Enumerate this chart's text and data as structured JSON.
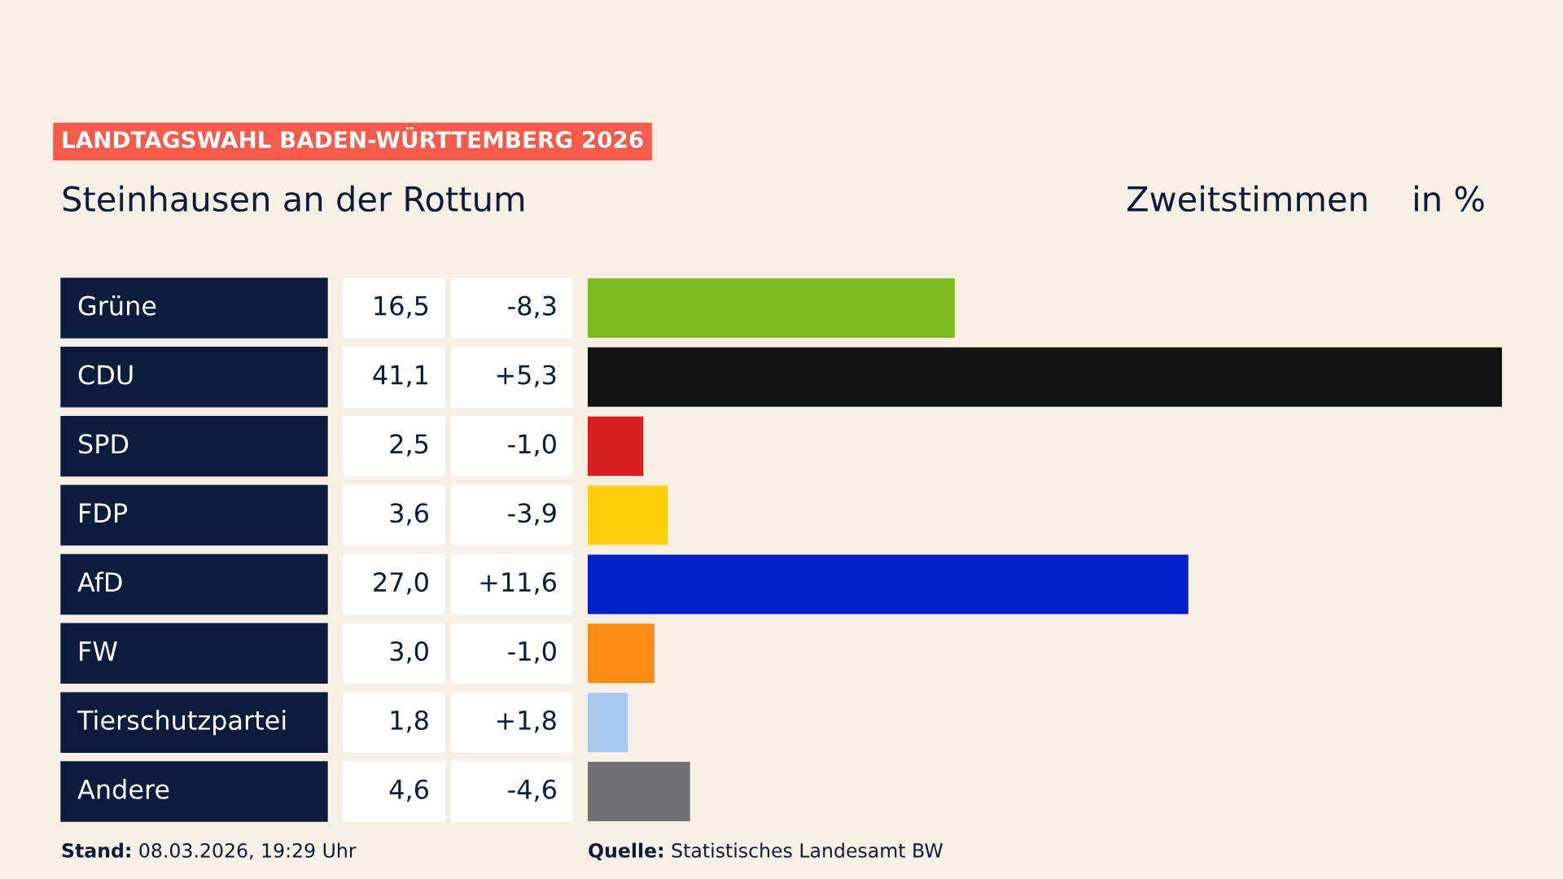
{
  "chart_data": {
    "type": "bar",
    "orientation": "horizontal",
    "title": "LANDTAGSWAHL BADEN-WÜRTTEMBERG 2026",
    "subtitle": "Steinhausen an der Rottum",
    "categories": [
      "Grüne",
      "CDU",
      "SPD",
      "FDP",
      "AfD",
      "FW",
      "Tierschutzpartei",
      "Andere"
    ],
    "values": [
      16.5,
      41.1,
      2.5,
      3.6,
      27.0,
      3.0,
      1.8,
      4.6
    ],
    "value_labels": [
      "16,5",
      "41,1",
      "2,5",
      "3,6",
      "27,0",
      "3,0",
      "1,8",
      "4,6"
    ],
    "colors": [
      "#7bbd1e",
      "#121212",
      "#d6201f",
      "#ffd00a",
      "#0020c8",
      "#ff8c14",
      "#a8c8f0",
      "#707173"
    ],
    "annotations": [
      "-8,3",
      "+5,3",
      "-1,0",
      "-3,9",
      "+11,6",
      "-1,0",
      "+1,8",
      "-4,6",
      "Zweitstimmen",
      "in %",
      "Stand: 08.03.2026, 19:29 Uhr",
      "Quelle: Statistisches Landesamt BW"
    ],
    "legend": false
  }
}
